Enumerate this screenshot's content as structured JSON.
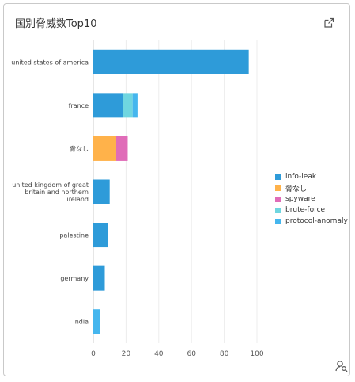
{
  "card": {
    "title": "国別脅威数Top10"
  },
  "icons": {
    "external_link": "external-link-icon",
    "user_search": "user-search-icon"
  },
  "chart_data": {
    "type": "bar",
    "orientation": "horizontal",
    "stacked": true,
    "categories": [
      "united states of america",
      "france",
      "脅なし",
      "united kingdom of great britain and northern ireland",
      "palestine",
      "germany",
      "india"
    ],
    "series": [
      {
        "name": "info-leak",
        "color": "#2e9bd9",
        "values": [
          95,
          18,
          0,
          10,
          9,
          7,
          0
        ]
      },
      {
        "name": "脅なし",
        "color": "#ffb24a",
        "values": [
          0,
          0,
          14,
          0,
          0,
          0,
          0
        ]
      },
      {
        "name": "spyware",
        "color": "#e06cb8",
        "values": [
          0,
          0,
          7,
          0,
          0,
          0,
          0
        ]
      },
      {
        "name": "brute-force",
        "color": "#6fd6e0",
        "values": [
          0,
          6,
          0,
          0,
          0,
          0,
          0
        ]
      },
      {
        "name": "protocol-anomaly",
        "color": "#45b6ee",
        "values": [
          0,
          3,
          0,
          0,
          0,
          0,
          4
        ]
      }
    ],
    "xticks": [
      0,
      20,
      40,
      60,
      80,
      100
    ],
    "xlim": [
      0,
      100
    ],
    "grid": true,
    "legend_position": "right"
  }
}
